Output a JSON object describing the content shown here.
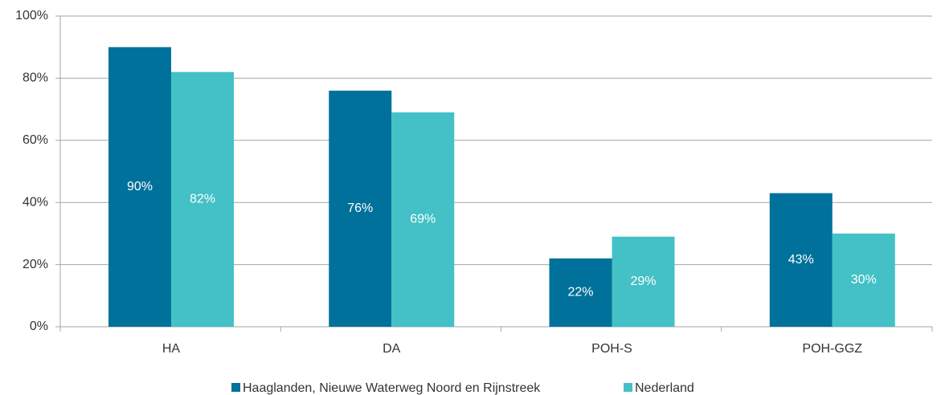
{
  "chart_data": {
    "type": "bar",
    "categories": [
      "HA",
      "DA",
      "POH-S",
      "POH-GGZ"
    ],
    "series": [
      {
        "name": "Haaglanden, Nieuwe Waterweg Noord en Rijnstreek",
        "color": "#00719a",
        "values": [
          90,
          76,
          22,
          43
        ],
        "value_labels": [
          "90%",
          "76%",
          "22%",
          "43%"
        ]
      },
      {
        "name": "Nederland",
        "color": "#43c1c6",
        "values": [
          82,
          69,
          29,
          30
        ],
        "value_labels": [
          "82%",
          "69%",
          "29%",
          "30%"
        ]
      }
    ],
    "ylim": [
      0,
      100
    ],
    "yticks": [
      {
        "value": 0,
        "label": "0%"
      },
      {
        "value": 20,
        "label": "20%"
      },
      {
        "value": 40,
        "label": "40%"
      },
      {
        "value": 60,
        "label": "60%"
      },
      {
        "value": 80,
        "label": "80%"
      },
      {
        "value": 100,
        "label": "100%"
      }
    ],
    "grid": true,
    "legend": "bottom"
  }
}
